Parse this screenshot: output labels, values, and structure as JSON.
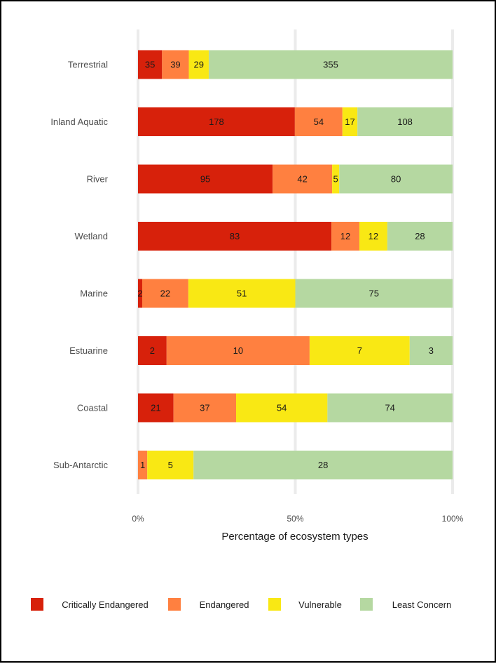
{
  "chart_data": {
    "type": "bar",
    "orientation": "horizontal",
    "stacking": "percent",
    "xlabel": "Percentage of ecosystem types",
    "ylabel": "",
    "xlim": [
      0,
      100
    ],
    "x_ticks": [
      {
        "value": 0,
        "label": "0%"
      },
      {
        "value": 50,
        "label": "50%"
      },
      {
        "value": 100,
        "label": "100%"
      }
    ],
    "grid": true,
    "legend_position": "bottom",
    "categories": [
      "Terrestrial",
      "Inland Aquatic",
      "River",
      "Wetland",
      "Marine",
      "Estuarine",
      "Coastal",
      "Sub-Antarctic"
    ],
    "series": [
      {
        "name": "Critically Endangered",
        "color": "#d7210b",
        "values": [
          35,
          178,
          95,
          83,
          2,
          2,
          21,
          0
        ]
      },
      {
        "name": "Endangered",
        "color": "#ff8040",
        "values": [
          39,
          54,
          42,
          12,
          22,
          10,
          37,
          1
        ]
      },
      {
        "name": "Vulnerable",
        "color": "#f9e814",
        "values": [
          29,
          17,
          5,
          12,
          51,
          7,
          54,
          5
        ]
      },
      {
        "name": "Least Concern",
        "color": "#b5d8a1",
        "values": [
          355,
          108,
          80,
          28,
          75,
          3,
          74,
          28
        ]
      }
    ]
  }
}
